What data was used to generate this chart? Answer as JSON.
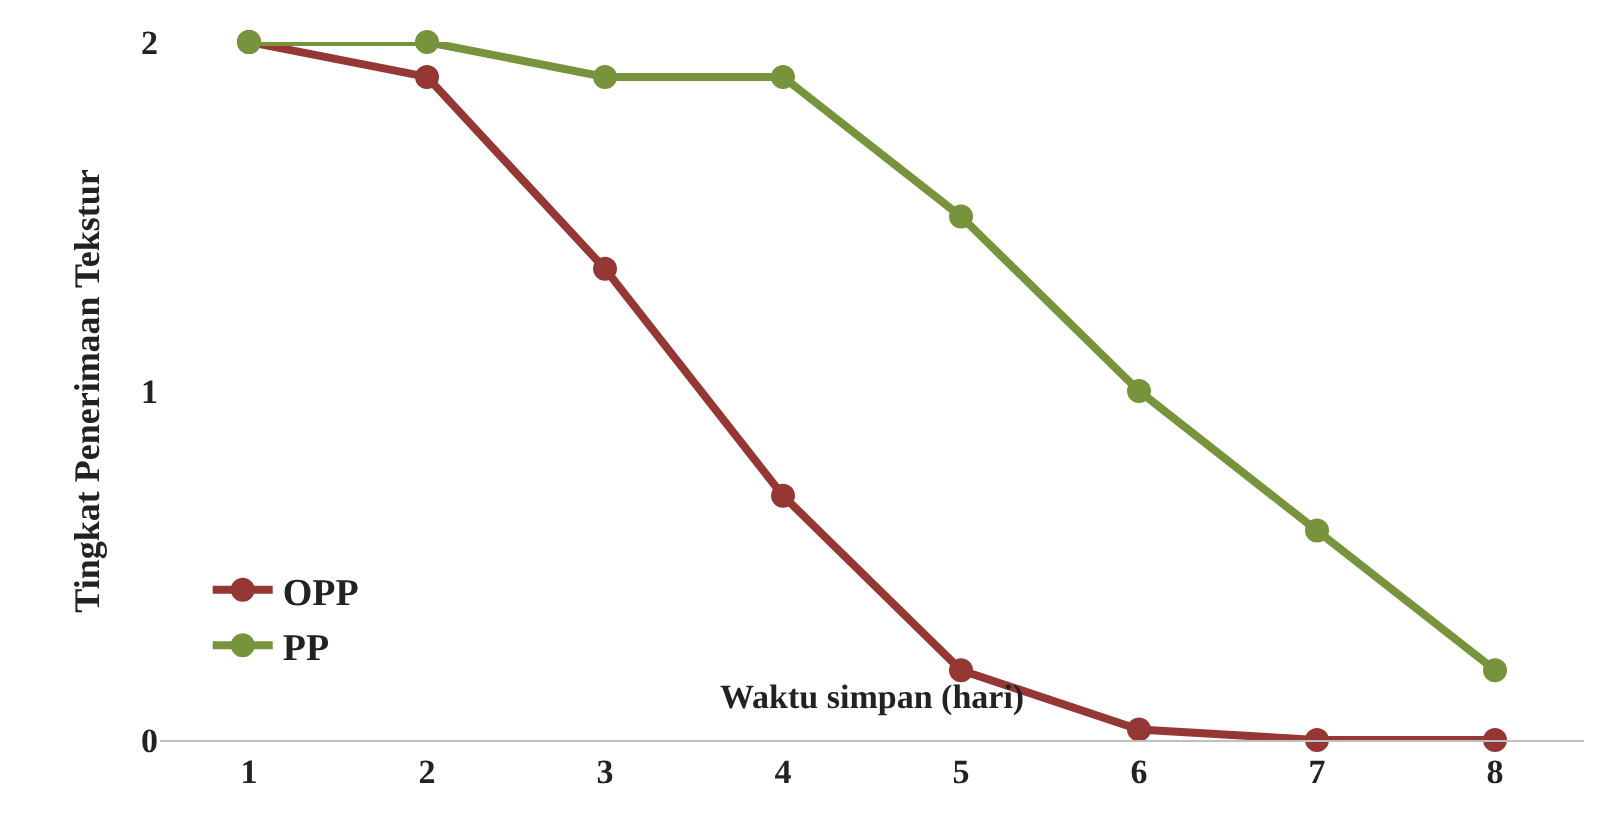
{
  "chart_data": {
    "type": "line",
    "xlabel": "Waktu simpan (hari)",
    "ylabel": "Tingkat Penerimaan Tekstur",
    "categories": [
      "1",
      "2",
      "3",
      "4",
      "5",
      "6",
      "7",
      "8"
    ],
    "series": [
      {
        "name": "OPP",
        "color": "#953735",
        "values": [
          2,
          1.9,
          1.35,
          0.7,
          0.2,
          0.03,
          0,
          0
        ]
      },
      {
        "name": "PP",
        "color": "#77933c",
        "values": [
          2,
          2,
          1.9,
          1.9,
          1.5,
          1.0,
          0.6,
          0.2
        ]
      }
    ],
    "ylim": [
      0,
      2
    ],
    "yticks": [
      0,
      1,
      2
    ],
    "legend": "bottom left",
    "marker": "circle",
    "line_style": "solid"
  }
}
